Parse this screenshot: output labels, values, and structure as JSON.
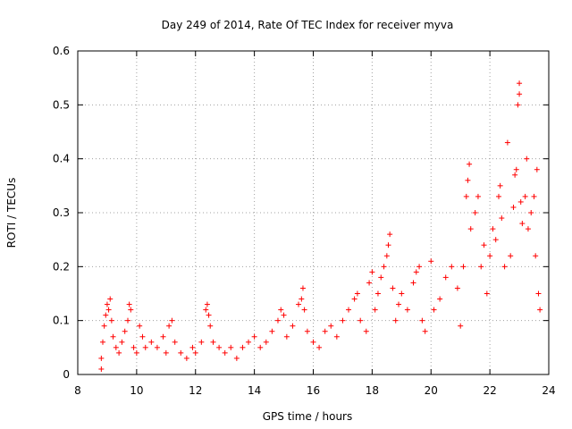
{
  "chart_data": {
    "type": "scatter",
    "title": "Day 249 of 2014, Rate Of TEC Index for receiver myva",
    "xlabel": "GPS time / hours",
    "ylabel": "ROTI / TECUs",
    "xlim": [
      8,
      24
    ],
    "ylim": [
      0,
      0.6
    ],
    "x_ticks": [
      8,
      10,
      12,
      14,
      16,
      18,
      20,
      22,
      24
    ],
    "y_ticks": [
      0,
      0.1,
      0.2,
      0.3,
      0.4,
      0.5,
      0.6
    ],
    "y_tick_labels": [
      "0",
      "0.1",
      "0.2",
      "0.3",
      "0.4",
      "0.5",
      "0.6"
    ],
    "grid": true,
    "marker": "+",
    "color": "#ff0000",
    "series": [
      {
        "name": "ROTI",
        "points": [
          [
            8.8,
            0.01
          ],
          [
            8.8,
            0.03
          ],
          [
            8.85,
            0.06
          ],
          [
            8.9,
            0.09
          ],
          [
            8.95,
            0.11
          ],
          [
            9.0,
            0.13
          ],
          [
            9.05,
            0.12
          ],
          [
            9.1,
            0.14
          ],
          [
            9.15,
            0.1
          ],
          [
            9.2,
            0.07
          ],
          [
            9.3,
            0.05
          ],
          [
            9.4,
            0.04
          ],
          [
            9.5,
            0.06
          ],
          [
            9.6,
            0.08
          ],
          [
            9.7,
            0.1
          ],
          [
            9.75,
            0.13
          ],
          [
            9.8,
            0.12
          ],
          [
            9.9,
            0.05
          ],
          [
            10.0,
            0.04
          ],
          [
            10.1,
            0.09
          ],
          [
            10.2,
            0.07
          ],
          [
            10.3,
            0.05
          ],
          [
            10.5,
            0.06
          ],
          [
            10.7,
            0.05
          ],
          [
            10.9,
            0.07
          ],
          [
            11.0,
            0.04
          ],
          [
            11.1,
            0.09
          ],
          [
            11.2,
            0.1
          ],
          [
            11.3,
            0.06
          ],
          [
            11.5,
            0.04
          ],
          [
            11.7,
            0.03
          ],
          [
            11.9,
            0.05
          ],
          [
            12.0,
            0.04
          ],
          [
            12.2,
            0.06
          ],
          [
            12.35,
            0.12
          ],
          [
            12.4,
            0.13
          ],
          [
            12.45,
            0.11
          ],
          [
            12.5,
            0.09
          ],
          [
            12.6,
            0.06
          ],
          [
            12.8,
            0.05
          ],
          [
            13.0,
            0.04
          ],
          [
            13.2,
            0.05
          ],
          [
            13.4,
            0.03
          ],
          [
            13.6,
            0.05
          ],
          [
            13.8,
            0.06
          ],
          [
            14.0,
            0.07
          ],
          [
            14.2,
            0.05
          ],
          [
            14.4,
            0.06
          ],
          [
            14.6,
            0.08
          ],
          [
            14.8,
            0.1
          ],
          [
            14.9,
            0.12
          ],
          [
            15.0,
            0.11
          ],
          [
            15.1,
            0.07
          ],
          [
            15.3,
            0.09
          ],
          [
            15.5,
            0.13
          ],
          [
            15.6,
            0.14
          ],
          [
            15.65,
            0.16
          ],
          [
            15.7,
            0.12
          ],
          [
            15.8,
            0.08
          ],
          [
            16.0,
            0.06
          ],
          [
            16.2,
            0.05
          ],
          [
            16.4,
            0.08
          ],
          [
            16.6,
            0.09
          ],
          [
            16.8,
            0.07
          ],
          [
            17.0,
            0.1
          ],
          [
            17.2,
            0.12
          ],
          [
            17.4,
            0.14
          ],
          [
            17.5,
            0.15
          ],
          [
            17.6,
            0.1
          ],
          [
            17.8,
            0.08
          ],
          [
            17.9,
            0.17
          ],
          [
            18.0,
            0.19
          ],
          [
            18.1,
            0.12
          ],
          [
            18.2,
            0.15
          ],
          [
            18.3,
            0.18
          ],
          [
            18.4,
            0.2
          ],
          [
            18.5,
            0.22
          ],
          [
            18.55,
            0.24
          ],
          [
            18.6,
            0.26
          ],
          [
            18.7,
            0.16
          ],
          [
            18.8,
            0.1
          ],
          [
            18.9,
            0.13
          ],
          [
            19.0,
            0.15
          ],
          [
            19.2,
            0.12
          ],
          [
            19.4,
            0.17
          ],
          [
            19.5,
            0.19
          ],
          [
            19.6,
            0.2
          ],
          [
            19.7,
            0.1
          ],
          [
            19.8,
            0.08
          ],
          [
            20.0,
            0.21
          ],
          [
            20.1,
            0.12
          ],
          [
            20.3,
            0.14
          ],
          [
            20.5,
            0.18
          ],
          [
            20.7,
            0.2
          ],
          [
            20.9,
            0.16
          ],
          [
            21.0,
            0.09
          ],
          [
            21.1,
            0.2
          ],
          [
            21.2,
            0.33
          ],
          [
            21.25,
            0.36
          ],
          [
            21.3,
            0.39
          ],
          [
            21.35,
            0.27
          ],
          [
            21.5,
            0.3
          ],
          [
            21.6,
            0.33
          ],
          [
            21.7,
            0.2
          ],
          [
            21.8,
            0.24
          ],
          [
            21.9,
            0.15
          ],
          [
            22.0,
            0.22
          ],
          [
            22.1,
            0.27
          ],
          [
            22.2,
            0.25
          ],
          [
            22.3,
            0.33
          ],
          [
            22.35,
            0.35
          ],
          [
            22.4,
            0.29
          ],
          [
            22.5,
            0.2
          ],
          [
            22.6,
            0.43
          ],
          [
            22.7,
            0.22
          ],
          [
            22.8,
            0.31
          ],
          [
            22.85,
            0.37
          ],
          [
            22.9,
            0.38
          ],
          [
            22.95,
            0.5
          ],
          [
            23.0,
            0.54
          ],
          [
            23.0,
            0.52
          ],
          [
            23.05,
            0.32
          ],
          [
            23.1,
            0.28
          ],
          [
            23.2,
            0.33
          ],
          [
            23.25,
            0.4
          ],
          [
            23.3,
            0.27
          ],
          [
            23.4,
            0.3
          ],
          [
            23.5,
            0.33
          ],
          [
            23.55,
            0.22
          ],
          [
            23.6,
            0.38
          ],
          [
            23.65,
            0.15
          ],
          [
            23.7,
            0.12
          ]
        ]
      }
    ]
  }
}
